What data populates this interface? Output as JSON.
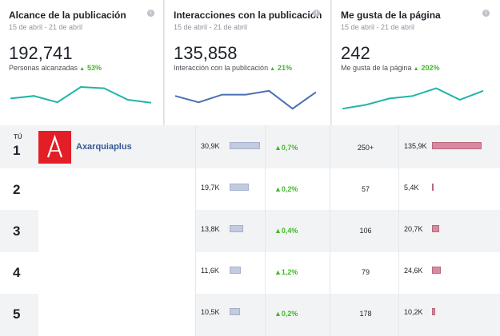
{
  "cards": [
    {
      "title": "Alcance de la publicación",
      "date": "15 de abril - 21 de abril",
      "value": "192,741",
      "sub_label": "Personas alcanzadas",
      "change": "53%",
      "info_icon": "info-icon",
      "trend": [
        0.45,
        0.35,
        0.6,
        0.0,
        0.05,
        0.5,
        0.62
      ]
    },
    {
      "title": "Interacciones con la publicación",
      "date": "15 de abril - 21 de abril",
      "value": "135,858",
      "sub_label": "Interacción con la publicación",
      "change": "21%",
      "info_icon": "info-icon",
      "trend": [
        0.35,
        0.6,
        0.3,
        0.3,
        0.15,
        0.85,
        0.2
      ]
    },
    {
      "title": "Me gusta de la página",
      "date": "15 de abril - 21 de abril",
      "value": "242",
      "sub_label": "Me gusta de la página",
      "change": "202%",
      "info_icon": "info-icon",
      "trend": [
        0.85,
        0.7,
        0.45,
        0.35,
        0.05,
        0.5,
        0.15
      ]
    }
  ],
  "table": {
    "you_label": "TÚ",
    "rows": [
      {
        "rank": "1",
        "name": "Axarquiaplus",
        "reach": "30,9K",
        "reach_share": 1.0,
        "growth": "0,7%",
        "engagement": "250+",
        "likes": "135,9K",
        "likes_share": 1.0
      },
      {
        "rank": "2",
        "name": "",
        "reach": "19,7K",
        "reach_share": 0.63,
        "growth": "0,2%",
        "engagement": "57",
        "likes": "5,4K",
        "likes_share": 0.03
      },
      {
        "rank": "3",
        "name": "",
        "reach": "13,8K",
        "reach_share": 0.45,
        "growth": "0,4%",
        "engagement": "106",
        "likes": "20,7K",
        "likes_share": 0.15
      },
      {
        "rank": "4",
        "name": "",
        "reach": "11,6K",
        "reach_share": 0.38,
        "growth": "1,2%",
        "engagement": "79",
        "likes": "24,6K",
        "likes_share": 0.18
      },
      {
        "rank": "5",
        "name": "",
        "reach": "10,5K",
        "reach_share": 0.34,
        "growth": "0,2%",
        "engagement": "178",
        "likes": "10,2K",
        "likes_share": 0.07
      }
    ]
  },
  "colors": {
    "trend_teal": "#1fb5a6",
    "trend_blue": "#4a6fb5",
    "up_green": "#42b72a",
    "logo_red": "#e41e26",
    "link_blue": "#365899"
  }
}
